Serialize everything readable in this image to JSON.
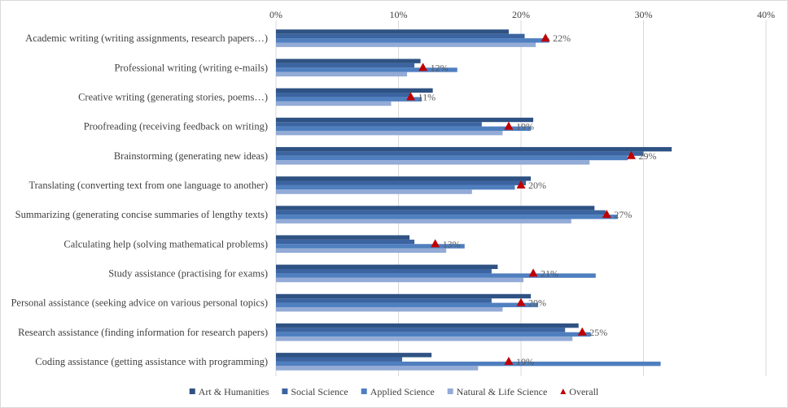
{
  "chart_data": {
    "type": "bar",
    "orientation": "horizontal",
    "xlim": [
      0,
      40
    ],
    "x_ticks": [
      "0%",
      "10%",
      "20%",
      "30%",
      "40%"
    ],
    "grid": "vertical",
    "legend_position": "bottom",
    "categories": [
      "Academic writing (writing assignments, research papers…)",
      "Professional writing (writing e-mails)",
      "Creative writing (generating stories, poems…)",
      "Proofreading (receiving feedback on writing)",
      "Brainstorming (generating new ideas)",
      "Translating (converting text from one language to another)",
      "Summarizing (generating concise summaries of lengthy texts)",
      "Calculating help (solving mathematical problems)",
      "Study assistance (practising for exams)",
      "Personal assistance (seeking advice on various personal topics)",
      "Research assistance (finding information for research papers)",
      "Coding assistance (getting assistance with programming)"
    ],
    "series": [
      {
        "name": "Art & Humanities",
        "color": "#2e5283",
        "values": [
          19.0,
          11.8,
          12.8,
          21.0,
          32.3,
          20.8,
          26.0,
          10.9,
          18.1,
          20.8,
          24.7,
          12.7
        ]
      },
      {
        "name": "Social Science",
        "color": "#3b64a0",
        "values": [
          20.3,
          11.3,
          11.0,
          16.8,
          30.0,
          20.4,
          26.9,
          11.3,
          17.6,
          17.6,
          23.6,
          10.3
        ]
      },
      {
        "name": "Applied Science",
        "color": "#4f7fbf",
        "values": [
          22.3,
          14.8,
          11.9,
          20.8,
          28.7,
          19.5,
          27.9,
          15.4,
          26.1,
          21.4,
          25.7,
          31.4
        ]
      },
      {
        "name": "Natural & Life Science",
        "color": "#93abd6",
        "values": [
          21.2,
          10.7,
          9.4,
          18.5,
          25.6,
          16.0,
          24.1,
          13.9,
          20.2,
          18.5,
          24.2,
          16.5
        ]
      }
    ],
    "overall": {
      "name": "Overall",
      "color": "#c00000",
      "values": [
        22,
        12,
        11,
        19,
        29,
        20,
        27,
        13,
        21,
        20,
        25,
        19
      ],
      "labels": [
        "22%",
        "12%",
        "11%",
        "19%",
        "29%",
        "20%",
        "27%",
        "13%",
        "21%",
        "20%",
        "25%",
        "19%"
      ]
    }
  }
}
